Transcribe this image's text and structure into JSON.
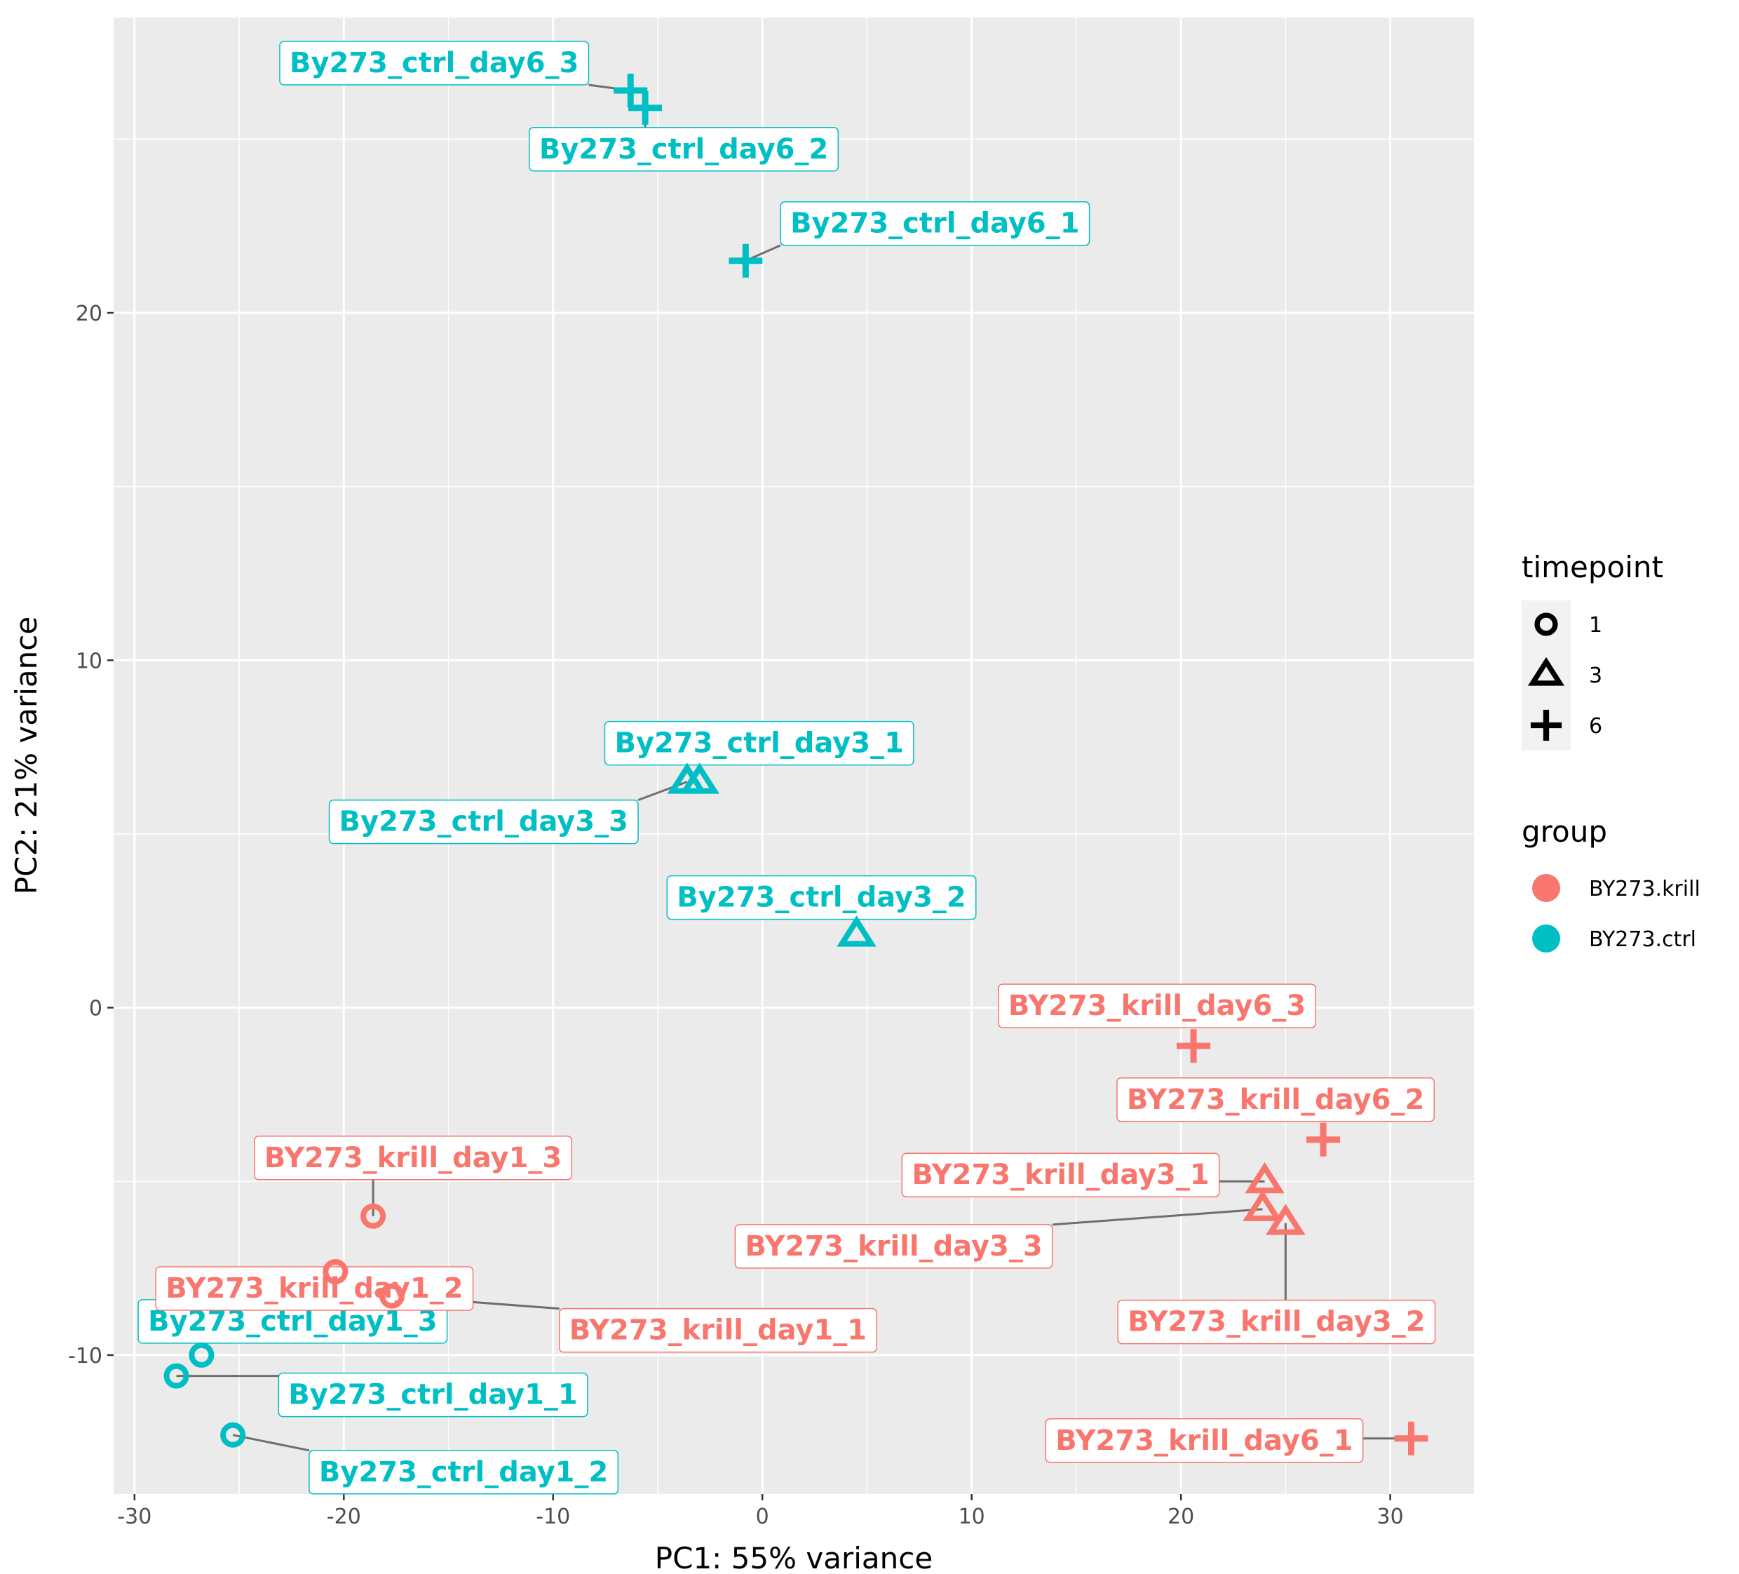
{
  "chart_data": {
    "type": "scatter",
    "title": "",
    "xlabel": "PC1: 55% variance",
    "ylabel": "PC2: 21% variance",
    "xlim": [
      -31,
      34
    ],
    "ylim": [
      -14,
      28.5
    ],
    "x_ticks": [
      -30,
      -20,
      -10,
      0,
      10,
      20,
      30
    ],
    "x_tick_labels": [
      "-30",
      "-20",
      "-10",
      "0",
      "10",
      "20",
      "30"
    ],
    "y_ticks": [
      -10,
      0,
      10,
      20
    ],
    "y_tick_labels": [
      "-10",
      "0",
      "10",
      "20"
    ],
    "grid": true,
    "legend": {
      "placement": "right",
      "shape_title": "timepoint",
      "shape_items": [
        {
          "label": "1",
          "shape": "circle"
        },
        {
          "label": "3",
          "shape": "triangle"
        },
        {
          "label": "6",
          "shape": "plus"
        }
      ],
      "color_title": "group",
      "color_items": [
        {
          "label": "BY273.krill",
          "color": "#F8766D"
        },
        {
          "label": "BY273.ctrl",
          "color": "#00BFC4"
        }
      ]
    },
    "points": [
      {
        "label": "By273_ctrl_day6_3",
        "group": "BY273.ctrl",
        "timepoint": "6",
        "x": -6.3,
        "y": 26.4
      },
      {
        "label": "By273_ctrl_day6_2",
        "group": "BY273.ctrl",
        "timepoint": "6",
        "x": -5.6,
        "y": 25.9
      },
      {
        "label": "By273_ctrl_day6_1",
        "group": "BY273.ctrl",
        "timepoint": "6",
        "x": -0.8,
        "y": 21.5
      },
      {
        "label": "By273_ctrl_day3_1",
        "group": "BY273.ctrl",
        "timepoint": "3",
        "x": -3.0,
        "y": 6.5
      },
      {
        "label": "By273_ctrl_day3_3",
        "group": "BY273.ctrl",
        "timepoint": "3",
        "x": -3.6,
        "y": 6.5
      },
      {
        "label": "By273_ctrl_day3_2",
        "group": "BY273.ctrl",
        "timepoint": "3",
        "x": 4.5,
        "y": 2.1
      },
      {
        "label": "By273_ctrl_day1_3",
        "group": "BY273.ctrl",
        "timepoint": "1",
        "x": -26.8,
        "y": -10.0
      },
      {
        "label": "By273_ctrl_day1_1",
        "group": "BY273.ctrl",
        "timepoint": "1",
        "x": -28.0,
        "y": -10.6
      },
      {
        "label": "By273_ctrl_day1_2",
        "group": "BY273.ctrl",
        "timepoint": "1",
        "x": -25.3,
        "y": -12.3
      },
      {
        "label": "BY273_krill_day6_3",
        "group": "BY273.krill",
        "timepoint": "6",
        "x": 20.6,
        "y": -1.1
      },
      {
        "label": "BY273_krill_day6_2",
        "group": "BY273.krill",
        "timepoint": "6",
        "x": 26.8,
        "y": -3.8
      },
      {
        "label": "BY273_krill_day6_1",
        "group": "BY273.krill",
        "timepoint": "6",
        "x": 31.0,
        "y": -12.4
      },
      {
        "label": "BY273_krill_day3_1",
        "group": "BY273.krill",
        "timepoint": "3",
        "x": 24.0,
        "y": -5.0
      },
      {
        "label": "BY273_krill_day3_3",
        "group": "BY273.krill",
        "timepoint": "3",
        "x": 23.9,
        "y": -5.8
      },
      {
        "label": "BY273_krill_day3_2",
        "group": "BY273.krill",
        "timepoint": "3",
        "x": 25.0,
        "y": -6.2
      },
      {
        "label": "BY273_krill_day1_3",
        "group": "BY273.krill",
        "timepoint": "1",
        "x": -18.6,
        "y": -6.0
      },
      {
        "label": "BY273_krill_day1_2",
        "group": "BY273.krill",
        "timepoint": "1",
        "x": -20.4,
        "y": -7.6
      },
      {
        "label": "BY273_krill_day1_1",
        "group": "BY273.krill",
        "timepoint": "1",
        "x": -17.7,
        "y": -8.3
      }
    ]
  }
}
